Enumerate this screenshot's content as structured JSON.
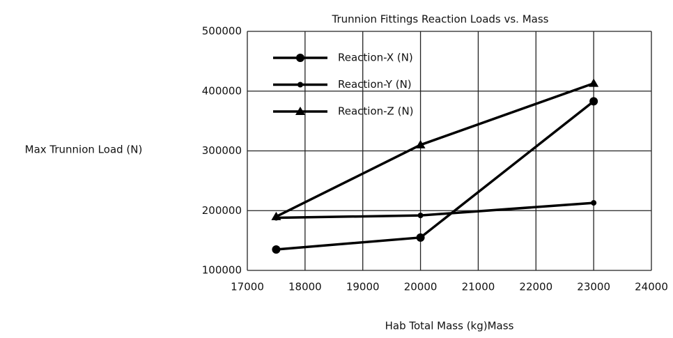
{
  "chart_data": {
    "type": "line",
    "title": "Trunnion Fittings Reaction Loads vs. Mass",
    "x_label": "Hab Total Mass (kg)Mass",
    "y_label": "Max Trunnion Load (N)",
    "x": [
      17500,
      20000,
      23000
    ],
    "series": [
      {
        "name": "Reaction-X (N)",
        "color": "#000000",
        "marker": "circle",
        "values": [
          135000,
          155000,
          383000
        ]
      },
      {
        "name": "Reaction-Y (N)",
        "color": "#000000",
        "marker": "dot",
        "values": [
          188000,
          192000,
          213000
        ]
      },
      {
        "name": "Reaction-Z (N)",
        "color": "#000000",
        "marker": "triangle",
        "values": [
          190000,
          310000,
          413000
        ]
      }
    ],
    "xlim": [
      17000,
      24000
    ],
    "xticks": [
      17000,
      18000,
      19000,
      20000,
      21000,
      22000,
      23000,
      24000
    ],
    "ylim": [
      100000,
      500000
    ],
    "yticks": [
      100000,
      200000,
      300000,
      400000,
      500000
    ],
    "grid": true,
    "legend": "upper left"
  }
}
